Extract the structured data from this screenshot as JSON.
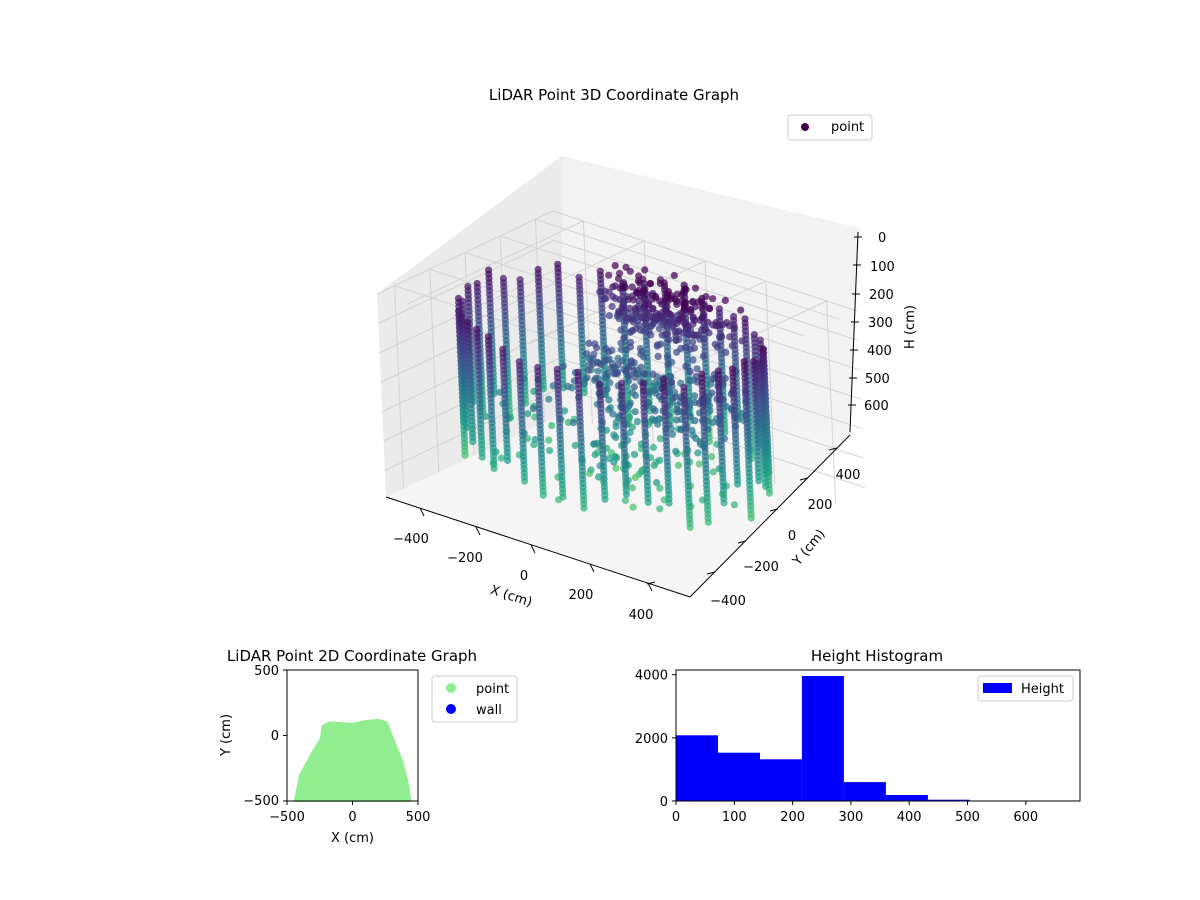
{
  "chart_data": [
    {
      "type": "scatter3d",
      "title": "LiDAR Point 3D Coordinate Graph",
      "xlabel": "X (cm)",
      "ylabel": "Y (cm)",
      "zlabel": "H (cm)",
      "xticks": [
        "−400",
        "−200",
        "0",
        "200",
        "400"
      ],
      "yticks": [
        "−400",
        "−200",
        "0",
        "200",
        "400"
      ],
      "zticks": [
        "0",
        "100",
        "200",
        "300",
        "400",
        "500",
        "600"
      ],
      "xlim": [
        -500,
        500
      ],
      "ylim": [
        -500,
        500
      ],
      "zlim": [
        0,
        690
      ],
      "z_inverted": true,
      "grid": true,
      "legend": {
        "placement": "top-right",
        "entries": [
          {
            "name": "point",
            "color": "#440154"
          }
        ]
      },
      "colormap": "viridis",
      "series": [
        {
          "name": "point",
          "description": "cylindrical room scan, radius ≈ 450 cm"
        }
      ]
    },
    {
      "type": "scatter",
      "title": "LiDAR Point 2D Coordinate Graph",
      "xlabel": "X (cm)",
      "ylabel": "Y (cm)",
      "xlim": [
        -500,
        500
      ],
      "ylim": [
        -500,
        500
      ],
      "xticks": [
        "−500",
        "0",
        "500"
      ],
      "yticks": [
        "−500",
        "0",
        "500"
      ],
      "legend": {
        "placement": "outside-right",
        "entries": [
          {
            "name": "point",
            "color": "#90ee90"
          },
          {
            "name": "wall",
            "color": "#0000ff"
          }
        ]
      },
      "series": [
        {
          "name": "point",
          "color": "#90ee90",
          "outline": [
            [
              -440,
              -510
            ],
            [
              -400,
              -300
            ],
            [
              -300,
              -120
            ],
            [
              -240,
              -20
            ],
            [
              -230,
              70
            ],
            [
              -180,
              100
            ],
            [
              0,
              90
            ],
            [
              100,
              110
            ],
            [
              200,
              120
            ],
            [
              260,
              100
            ],
            [
              300,
              0
            ],
            [
              380,
              -200
            ],
            [
              430,
              -400
            ],
            [
              440,
              -510
            ]
          ]
        },
        {
          "name": "wall",
          "color": "#0000ff",
          "points": []
        }
      ]
    },
    {
      "type": "bar",
      "title": "Height Histogram",
      "xlim": [
        0,
        693
      ],
      "ylim": [
        0,
        4150
      ],
      "xticks": [
        "0",
        "100",
        "200",
        "300",
        "400",
        "500",
        "600"
      ],
      "yticks": [
        "0",
        "2000",
        "4000"
      ],
      "legend": {
        "placement": "top-right",
        "entries": [
          {
            "name": "Height",
            "color": "#0000ff"
          }
        ]
      },
      "bin_width": 72,
      "bins": [
        {
          "x0": 0,
          "x1": 72,
          "count": 2080
        },
        {
          "x0": 72,
          "x1": 144,
          "count": 1530
        },
        {
          "x0": 144,
          "x1": 216,
          "count": 1320
        },
        {
          "x0": 216,
          "x1": 288,
          "count": 3960
        },
        {
          "x0": 288,
          "x1": 360,
          "count": 600
        },
        {
          "x0": 360,
          "x1": 432,
          "count": 190
        },
        {
          "x0": 432,
          "x1": 504,
          "count": 40
        },
        {
          "x0": 504,
          "x1": 576,
          "count": 10
        },
        {
          "x0": 576,
          "x1": 648,
          "count": 5
        },
        {
          "x0": 648,
          "x1": 693,
          "count": 3
        }
      ]
    }
  ]
}
